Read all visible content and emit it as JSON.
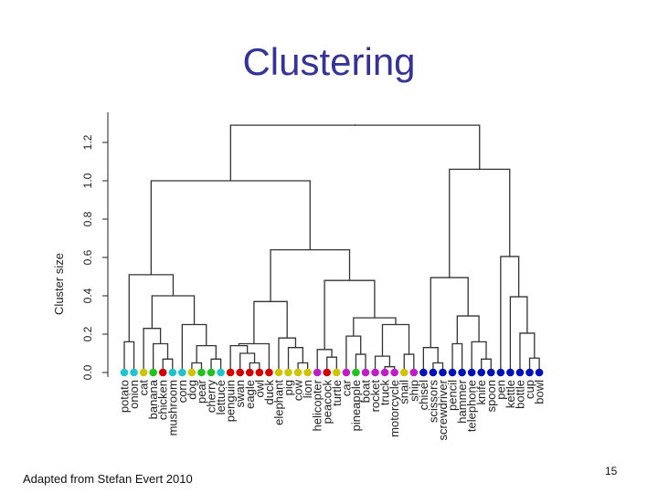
{
  "slide": {
    "title": "Clustering",
    "footer": "Adapted from Stefan Evert 2010",
    "page_number": "15"
  },
  "chart_data": {
    "type": "dendrogram",
    "ylabel": "Cluster size",
    "ylim": [
      0,
      1.2
    ],
    "yticks": [
      "0.0",
      "0.2",
      "0.4",
      "0.6",
      "0.8",
      "1.0",
      "1.2"
    ],
    "palette": {
      "cyan": "#20c4cc",
      "yellow": "#cfc400",
      "green": "#1fc21f",
      "red": "#d40000",
      "magenta": "#c21cc8",
      "blue": "#0010b8"
    },
    "leaves": [
      {
        "label": "potato",
        "color": "cyan"
      },
      {
        "label": "onion",
        "color": "cyan"
      },
      {
        "label": "cat",
        "color": "yellow"
      },
      {
        "label": "banana",
        "color": "green"
      },
      {
        "label": "chicken",
        "color": "red"
      },
      {
        "label": "mushroom",
        "color": "cyan"
      },
      {
        "label": "corn",
        "color": "cyan"
      },
      {
        "label": "dog",
        "color": "yellow"
      },
      {
        "label": "pear",
        "color": "green"
      },
      {
        "label": "cherry",
        "color": "green"
      },
      {
        "label": "lettuce",
        "color": "cyan"
      },
      {
        "label": "penguin",
        "color": "red"
      },
      {
        "label": "swan",
        "color": "red"
      },
      {
        "label": "eagle",
        "color": "red"
      },
      {
        "label": "owl",
        "color": "red"
      },
      {
        "label": "duck",
        "color": "red"
      },
      {
        "label": "elephant",
        "color": "yellow"
      },
      {
        "label": "pig",
        "color": "yellow"
      },
      {
        "label": "cow",
        "color": "yellow"
      },
      {
        "label": "lion",
        "color": "yellow"
      },
      {
        "label": "helicopter",
        "color": "magenta"
      },
      {
        "label": "peacock",
        "color": "red"
      },
      {
        "label": "turtle",
        "color": "yellow"
      },
      {
        "label": "car",
        "color": "magenta"
      },
      {
        "label": "pineapple",
        "color": "green"
      },
      {
        "label": "boat",
        "color": "magenta"
      },
      {
        "label": "rocket",
        "color": "magenta"
      },
      {
        "label": "truck",
        "color": "magenta"
      },
      {
        "label": "motorcycle",
        "color": "magenta"
      },
      {
        "label": "snail",
        "color": "yellow"
      },
      {
        "label": "ship",
        "color": "magenta"
      },
      {
        "label": "chisel",
        "color": "blue"
      },
      {
        "label": "scissors",
        "color": "blue"
      },
      {
        "label": "screwdriver",
        "color": "blue"
      },
      {
        "label": "pencil",
        "color": "blue"
      },
      {
        "label": "hammer",
        "color": "blue"
      },
      {
        "label": "telephone",
        "color": "blue"
      },
      {
        "label": "knife",
        "color": "blue"
      },
      {
        "label": "spoon",
        "color": "blue"
      },
      {
        "label": "pen",
        "color": "blue"
      },
      {
        "label": "kettle",
        "color": "blue"
      },
      {
        "label": "bottle",
        "color": "blue"
      },
      {
        "label": "cup",
        "color": "blue"
      },
      {
        "label": "bowl",
        "color": "blue"
      }
    ],
    "tree": {
      "h": 1.29,
      "children": [
        {
          "h": 1.0,
          "children": [
            {
              "h": 0.51,
              "children": [
                {
                  "h": 0.16,
                  "children": [
                    0,
                    1
                  ]
                },
                {
                  "h": 0.4,
                  "children": [
                    {
                      "h": 0.23,
                      "children": [
                        2,
                        {
                          "h": 0.15,
                          "children": [
                            3,
                            {
                              "h": 0.07,
                              "children": [
                                4,
                                5
                              ]
                            }
                          ]
                        }
                      ]
                    },
                    {
                      "h": 0.25,
                      "children": [
                        6,
                        {
                          "h": 0.14,
                          "children": [
                            {
                              "h": 0.05,
                              "children": [
                                7,
                                8
                              ]
                            },
                            {
                              "h": 0.07,
                              "children": [
                                9,
                                10
                              ]
                            }
                          ]
                        }
                      ]
                    }
                  ]
                }
              ]
            },
            {
              "h": 0.64,
              "children": [
                {
                  "h": 0.37,
                  "children": [
                    {
                      "h": 0.15,
                      "children": [
                        {
                          "h": 0.14,
                          "children": [
                            11,
                            {
                              "h": 0.1,
                              "children": [
                                12,
                                {
                                  "h": 0.05,
                                  "children": [
                                    13,
                                    14
                                  ]
                                }
                              ]
                            }
                          ]
                        },
                        15
                      ]
                    },
                    {
                      "h": 0.18,
                      "children": [
                        16,
                        {
                          "h": 0.13,
                          "children": [
                            17,
                            {
                              "h": 0.05,
                              "children": [
                                18,
                                19
                              ]
                            }
                          ]
                        }
                      ]
                    }
                  ]
                },
                {
                  "h": 0.48,
                  "children": [
                    {
                      "h": 0.12,
                      "children": [
                        20,
                        {
                          "h": 0.08,
                          "children": [
                            21,
                            22
                          ]
                        }
                      ]
                    },
                    {
                      "h": 0.285,
                      "children": [
                        {
                          "h": 0.19,
                          "children": [
                            23,
                            {
                              "h": 0.095,
                              "children": [
                                24,
                                25
                              ]
                            }
                          ]
                        },
                        {
                          "h": 0.25,
                          "children": [
                            {
                              "h": 0.085,
                              "children": [
                                26,
                                {
                                  "h": 0.03,
                                  "children": [
                                    27,
                                    28
                                  ]
                                }
                              ]
                            },
                            {
                              "h": 0.095,
                              "children": [
                                29,
                                30
                              ]
                            }
                          ]
                        }
                      ]
                    }
                  ]
                }
              ]
            }
          ]
        },
        {
          "h": 1.06,
          "children": [
            {
              "h": 0.495,
              "children": [
                {
                  "h": 0.13,
                  "children": [
                    31,
                    {
                      "h": 0.05,
                      "children": [
                        32,
                        33
                      ]
                    }
                  ]
                },
                {
                  "h": 0.295,
                  "children": [
                    {
                      "h": 0.15,
                      "children": [
                        34,
                        35
                      ]
                    },
                    {
                      "h": 0.16,
                      "children": [
                        36,
                        {
                          "h": 0.07,
                          "children": [
                            37,
                            38
                          ]
                        }
                      ]
                    }
                  ]
                }
              ]
            },
            {
              "h": 0.605,
              "children": [
                39,
                {
                  "h": 0.395,
                  "children": [
                    40,
                    {
                      "h": 0.205,
                      "children": [
                        41,
                        {
                          "h": 0.075,
                          "children": [
                            42,
                            43
                          ]
                        }
                      ]
                    }
                  ]
                }
              ]
            }
          ]
        }
      ]
    }
  }
}
